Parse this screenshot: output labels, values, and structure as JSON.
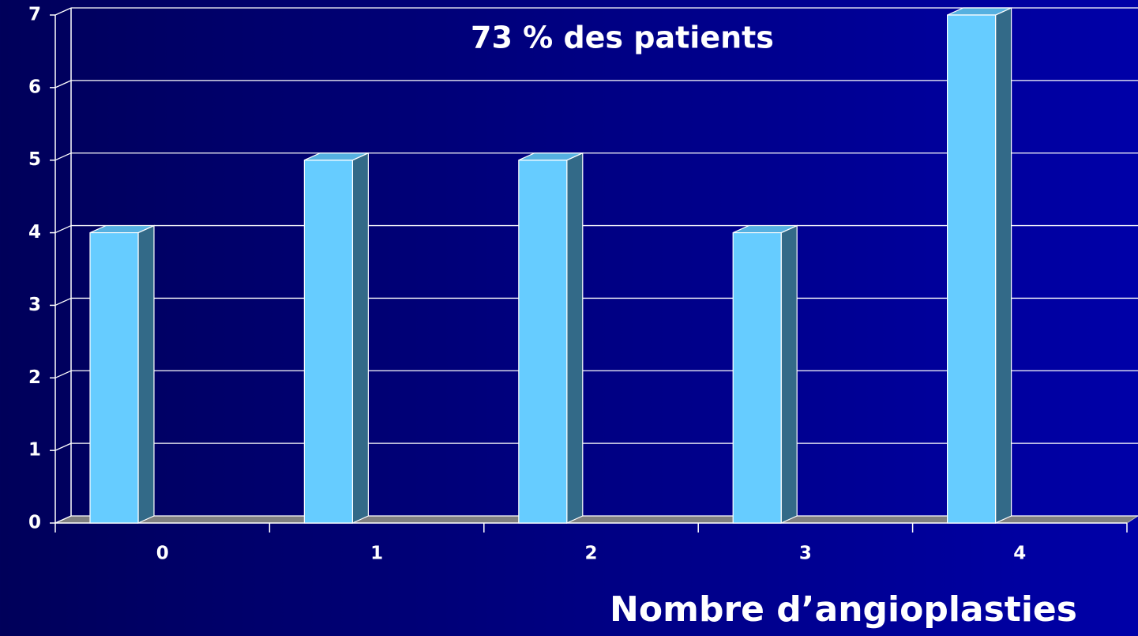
{
  "chart_data": {
    "type": "bar3d",
    "title": "73 % des patients",
    "x_label": "Nombre d’angioplasties",
    "categories": [
      "0",
      "1",
      "2",
      "3",
      "4"
    ],
    "values": [
      4,
      5,
      5,
      4,
      7
    ],
    "color": "#66ccff",
    "ylim": [
      0,
      7
    ],
    "yticks": [
      0,
      1,
      2,
      3,
      4,
      5,
      6,
      7
    ],
    "grid": true
  }
}
